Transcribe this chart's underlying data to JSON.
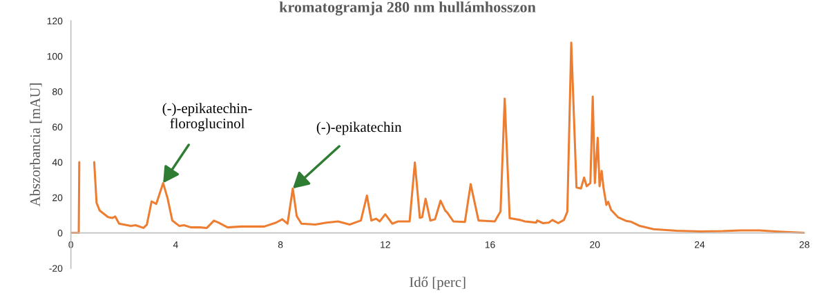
{
  "chart_data": {
    "type": "line",
    "title": "kromatogramja 280 nm hullámhosszon",
    "xlabel": "Idő [perc]",
    "ylabel": "Abszorbancia [mAU]",
    "x": [
      0,
      0.3,
      0.32,
      0.34,
      0.89,
      0.98,
      1.1,
      1.42,
      1.58,
      1.69,
      1.84,
      2.29,
      2.47,
      2.77,
      2.9,
      3.08,
      3.26,
      3.52,
      3.69,
      3.87,
      4.14,
      4.32,
      4.58,
      4.93,
      5.19,
      5.46,
      5.63,
      5.98,
      6.51,
      7.38,
      7.83,
      8.07,
      8.27,
      8.47,
      8.62,
      8.8,
      9.33,
      9.76,
      10.2,
      10.64,
      11.07,
      11.3,
      11.47,
      11.65,
      11.79,
      12.0,
      12.27,
      12.49,
      12.93,
      13.13,
      13.32,
      13.41,
      13.54,
      13.72,
      13.9,
      14.11,
      14.29,
      14.37,
      14.6,
      15.04,
      15.26,
      15.56,
      15.83,
      16.18,
      16.4,
      16.56,
      16.75,
      17.15,
      17.33,
      17.76,
      17.8,
      18.02,
      18.24,
      18.38,
      18.6,
      18.82,
      18.95,
      19.1,
      19.3,
      19.47,
      19.59,
      19.69,
      19.83,
      19.92,
      20.0,
      20.11,
      20.18,
      20.26,
      20.33,
      20.44,
      20.51,
      20.62,
      20.88,
      21.19,
      21.36,
      21.72,
      22.24,
      23.12,
      24.0,
      24.88,
      25.57,
      26.28,
      27.0,
      28.0
    ],
    "series": [
      {
        "color": "#ed7d31",
        "values": [
          0,
          0,
          40,
          null,
          40,
          17,
          12.6,
          8.9,
          8.4,
          9.3,
          5.2,
          3.9,
          4.3,
          2.8,
          4.7,
          17.8,
          16.4,
          28.2,
          19.6,
          7.0,
          3.9,
          4.3,
          3.1,
          3.1,
          2.8,
          6.9,
          5.8,
          3.1,
          3.6,
          3.6,
          5.8,
          7.7,
          5.2,
          25.1,
          9.5,
          5.2,
          4.7,
          5.8,
          6.5,
          4.7,
          7.0,
          21.1,
          7.0,
          8.0,
          6.5,
          10.5,
          5.2,
          6.5,
          6.5,
          39.8,
          8.5,
          8.9,
          19.3,
          7.0,
          7.7,
          18.2,
          12.6,
          11.4,
          6.5,
          6.2,
          27.6,
          7.0,
          6.8,
          6.5,
          12.1,
          76,
          8.3,
          7.3,
          6.5,
          5.8,
          7.0,
          5.5,
          5.8,
          7.3,
          5.5,
          7.3,
          12.0,
          107.7,
          25.7,
          25.1,
          31.3,
          26.4,
          28.2,
          77.1,
          28.2,
          53.8,
          26.4,
          35.1,
          25.7,
          15.8,
          17.6,
          13.0,
          8.9,
          6.8,
          6.4,
          3.9,
          2.1,
          1.2,
          0.8,
          1.0,
          1.4,
          1.4,
          0.7,
          0
        ]
      }
    ],
    "xlim": [
      0,
      28
    ],
    "xticks": [
      0,
      4,
      8,
      12,
      16,
      20,
      24,
      28
    ],
    "ylim": [
      -20,
      120
    ],
    "yticks": [
      -20,
      0,
      20,
      40,
      60,
      80,
      100,
      120
    ],
    "grid": false,
    "legend": false,
    "marker": "none",
    "line_style": "solid",
    "annotations": [
      {
        "text": "(-)-epikatechin-\nfloroglucinol",
        "x": 3.52,
        "y": 28.2
      },
      {
        "text": "(-)-epikatechin",
        "x": 8.47,
        "y": 25.1
      }
    ]
  }
}
